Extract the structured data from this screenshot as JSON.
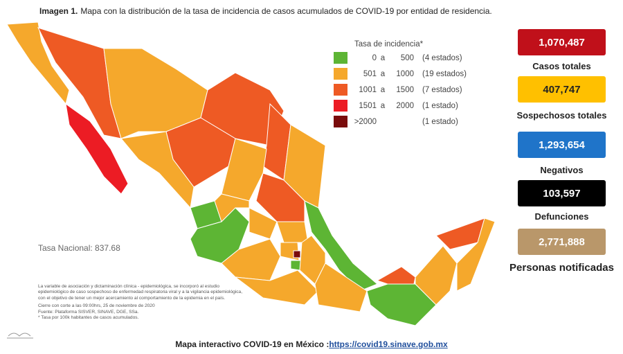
{
  "header": {
    "label": "Imagen 1.",
    "title": "Mapa con la distribución de la tasa de incidencia de casos acumulados de COVID-19 por entidad de residencia."
  },
  "legend": {
    "title": "Tasa de incidencia*",
    "items": [
      {
        "from": "0",
        "sep": "a",
        "to": "500",
        "count": "(4 estados)",
        "color": "#5db534"
      },
      {
        "from": "501",
        "sep": "a",
        "to": "1000",
        "count": "(19 estados)",
        "color": "#f5a82c"
      },
      {
        "from": "1001",
        "sep": "a",
        "to": "1500",
        "count": "(7 estados)",
        "color": "#ee5a24"
      },
      {
        "from": "1501",
        "sep": "a",
        "to": "2000",
        "count": "(1 estado)",
        "color": "#ec1c24"
      },
      {
        "from": ">2000",
        "sep": "",
        "to": "",
        "count": "(1 estado)",
        "color": "#7a0c0c"
      }
    ]
  },
  "national_rate": "Tasa Nacional: 837.68",
  "stats": [
    {
      "value": "1,070,487",
      "label": "Casos totales",
      "color": "#c0101a"
    },
    {
      "value": "407,747",
      "label": "Sospechosos totales",
      "color": "#ffc000"
    },
    {
      "value": "1,293,654",
      "label": "Negativos",
      "color": "#1f74c9"
    },
    {
      "value": "103,597",
      "label": "Defunciones",
      "color": "#000000"
    },
    {
      "value": "2,771,888",
      "label": "Personas notificadas",
      "color": "#b9976a"
    }
  ],
  "notes": [
    "La variable de asociación y dictaminación clínica - epidemiológica, se incorporó al estudio",
    "epidemiológico de caso sospechoso de enfermedad respiratoria viral y a la vigilancia epidemiológica,",
    "con el objetivo de tener un mejor acercamiento al comportamiento de la epidemia en el país.",
    "Cierre con corte a las 09:00hrs, 25 de noviembre de 2020",
    "Fuente: Plataforma SISVER, SINAVE, DGE, SSa.",
    "* Tasa por 100k habitantes de casos acumulados."
  ],
  "footer": {
    "text": "Mapa interactivo COVID-19 en México :",
    "link": "https://covid19.sinave.gob.mx"
  }
}
